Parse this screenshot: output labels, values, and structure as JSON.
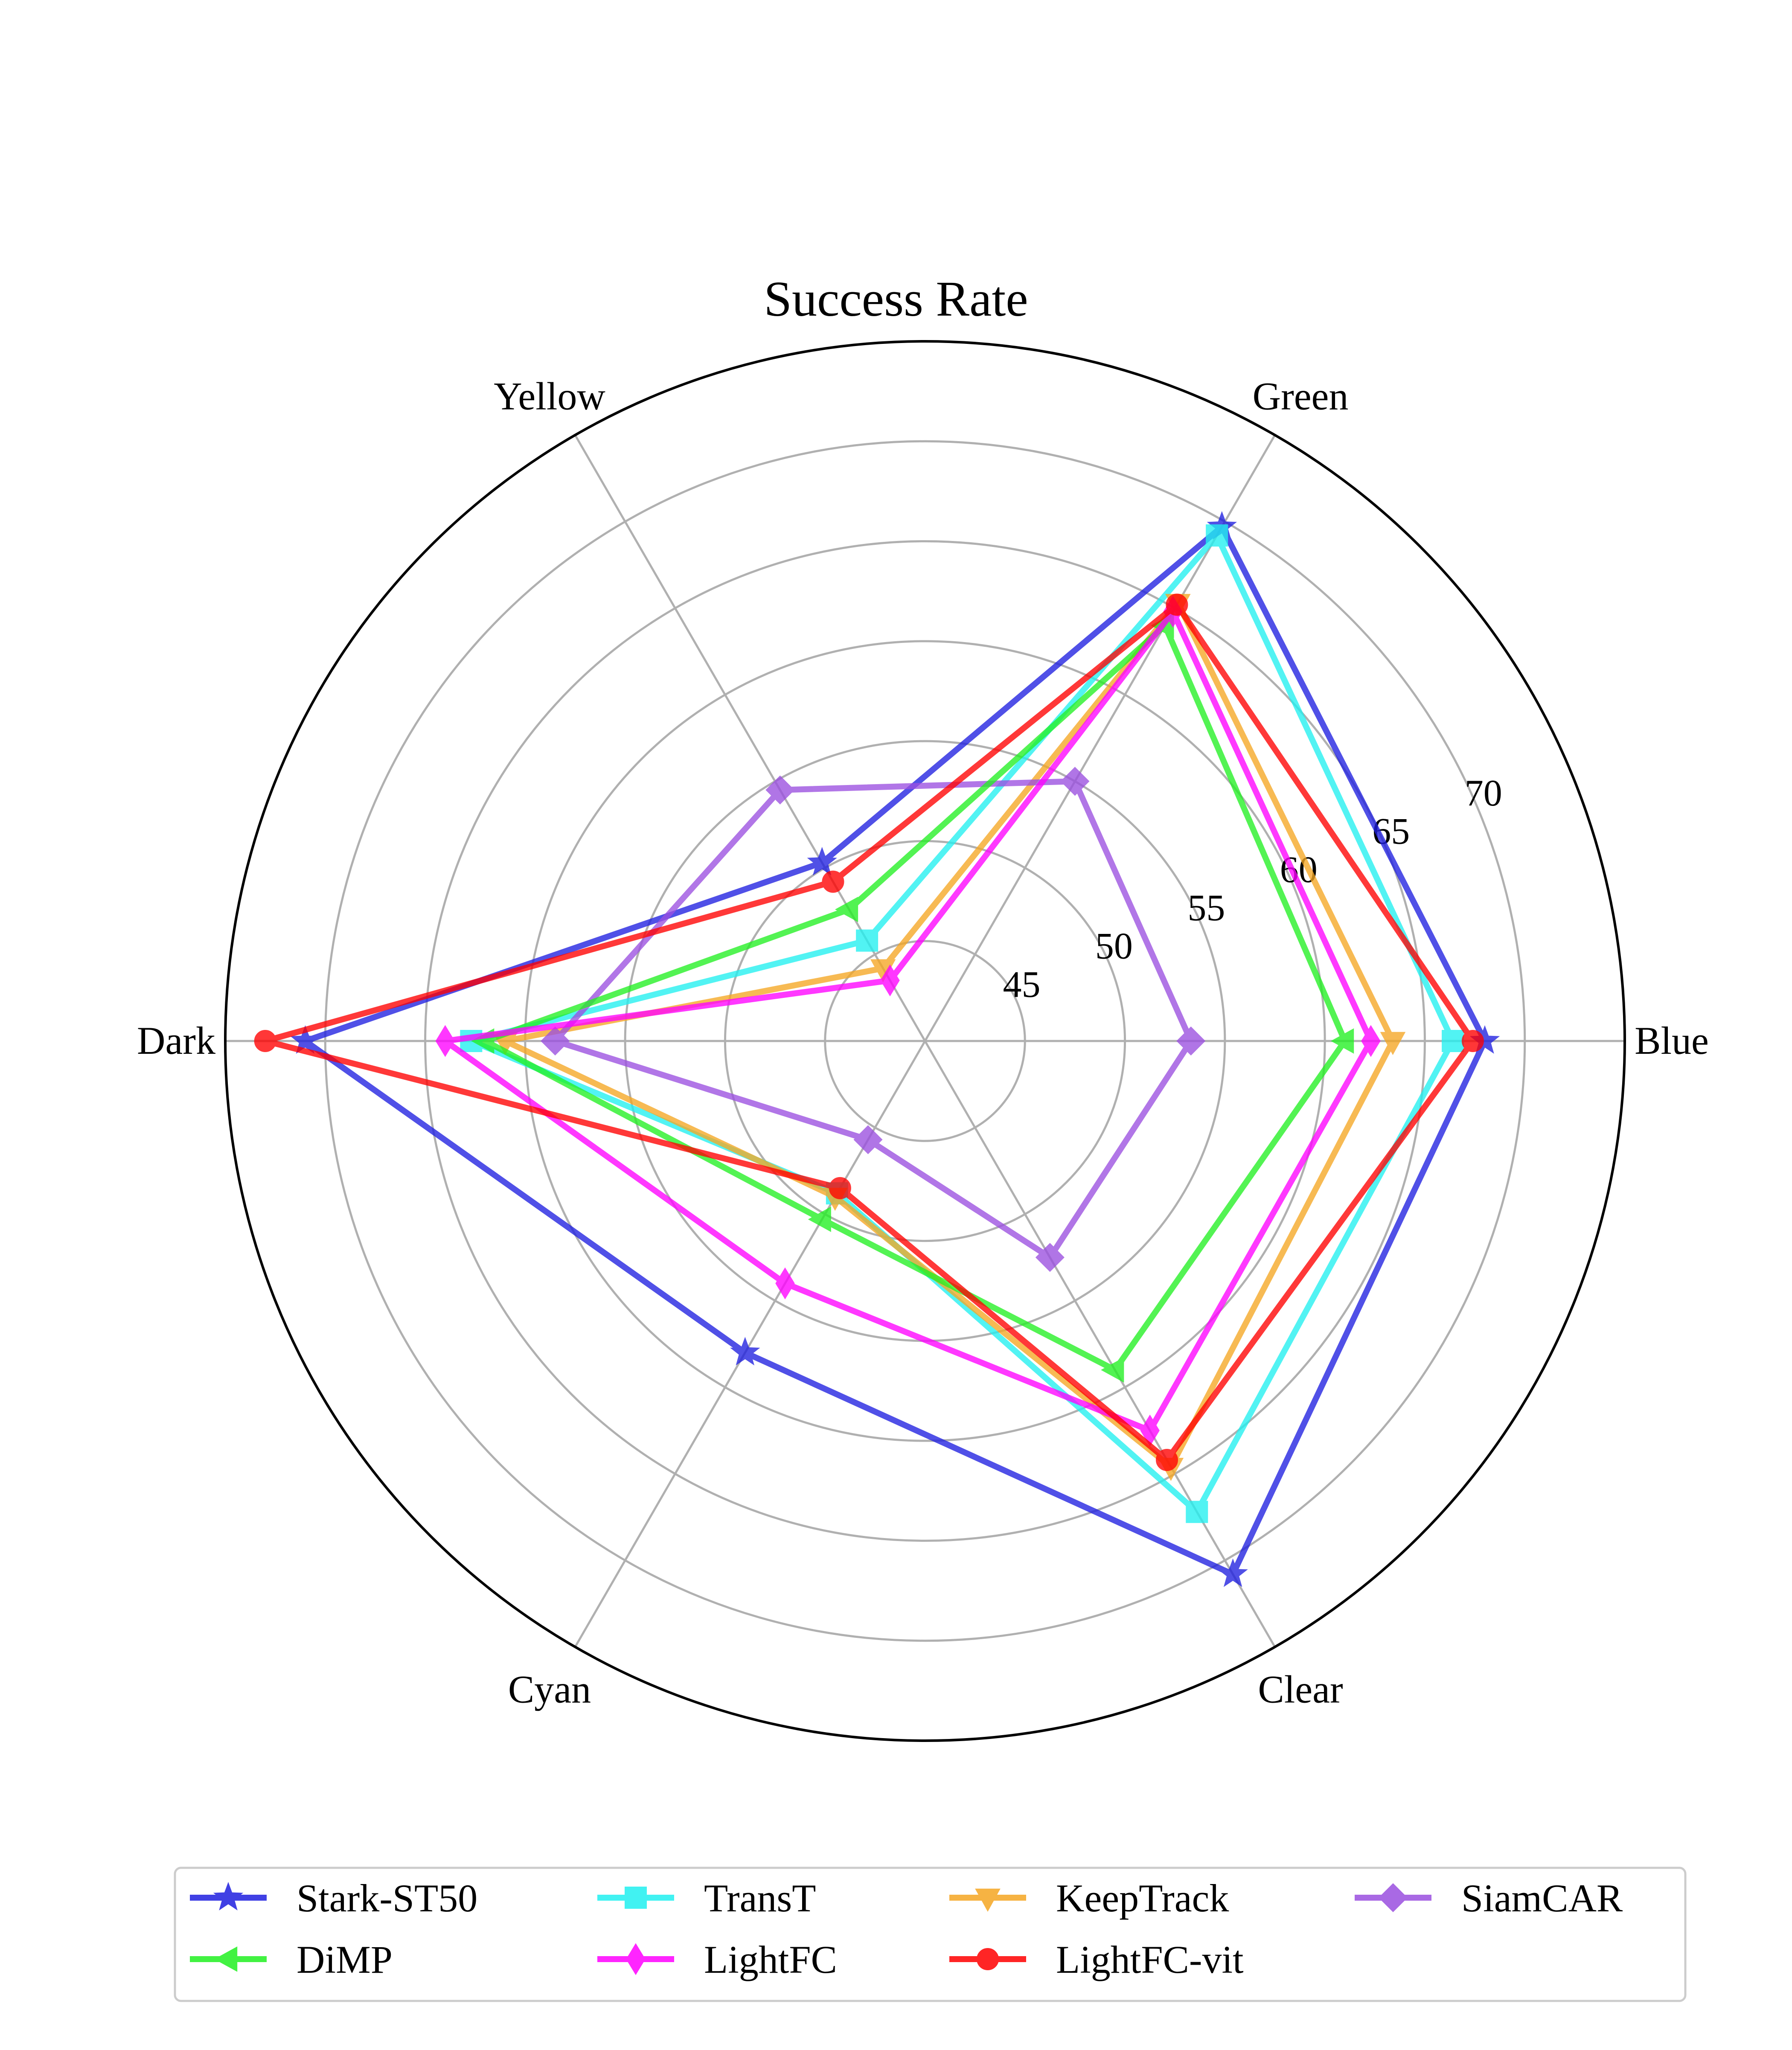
{
  "chart_data": {
    "type": "radar",
    "title": "Success Rate",
    "axes": [
      "Blue",
      "Green",
      "Yellow",
      "Dark",
      "Cyan",
      "Clear"
    ],
    "r_ticks": [
      45,
      50,
      55,
      60,
      65,
      70
    ],
    "r_range": [
      40,
      75
    ],
    "grid": true,
    "legend_position": "bottom",
    "series": [
      {
        "name": "Stark-ST50",
        "color": "#1f1fe0",
        "marker": "star",
        "values": [
          68.0,
          69.7,
          50.3,
          71.0,
          58.0,
          70.8
        ]
      },
      {
        "name": "TransT",
        "color": "#21f0f0",
        "marker": "square",
        "values": [
          66.4,
          69.2,
          45.8,
          62.7,
          48.8,
          67.2
        ]
      },
      {
        "name": "KeepTrack",
        "color": "#f5a623",
        "marker": "triangle-down",
        "values": [
          63.4,
          65.3,
          44.2,
          61.0,
          49.0,
          64.6
        ]
      },
      {
        "name": "SiamCAR",
        "color": "#9b4fe0",
        "marker": "diamond",
        "values": [
          53.3,
          55.0,
          54.5,
          58.5,
          45.7,
          52.5
        ]
      },
      {
        "name": "DiMP",
        "color": "#22f022",
        "marker": "triangle-left",
        "values": [
          61.0,
          64.0,
          47.6,
          62.0,
          50.3,
          59.0
        ]
      },
      {
        "name": "LightFC",
        "color": "#ff00ff",
        "marker": "diamond-thin",
        "values": [
          62.3,
          64.8,
          43.5,
          64.0,
          54.0,
          62.5
        ]
      },
      {
        "name": "LightFC-vit",
        "color": "#ff0000",
        "marker": "circle",
        "values": [
          67.4,
          65.2,
          49.2,
          73.0,
          48.5,
          64.2
        ]
      }
    ]
  },
  "legend": {
    "row1": [
      "Stark-ST50",
      "TransT",
      "KeepTrack",
      "SiamCAR"
    ],
    "row2": [
      "DiMP",
      "LightFC",
      "LightFC-vit"
    ]
  }
}
